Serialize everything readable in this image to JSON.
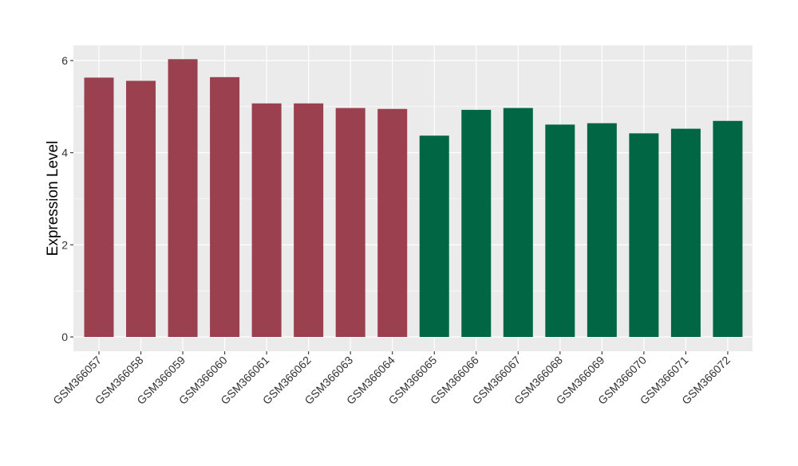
{
  "chart_data": {
    "type": "bar",
    "ylabel": "Expression Level",
    "xlabel": "",
    "title": "",
    "ylim": [
      0,
      6.3
    ],
    "y_ticks": [
      0,
      2,
      4,
      6
    ],
    "grid": true,
    "legend": "none",
    "colors": {
      "group_a": "#9b404f",
      "group_b": "#006644",
      "panel_background": "#ebebeb",
      "grid_line": "#ffffff"
    },
    "categories": [
      "GSM366057",
      "GSM366058",
      "GSM366059",
      "GSM366060",
      "GSM366061",
      "GSM366062",
      "GSM366063",
      "GSM366064",
      "GSM366065",
      "GSM366066",
      "GSM366067",
      "GSM366068",
      "GSM366069",
      "GSM366070",
      "GSM366071",
      "GSM366072"
    ],
    "values": [
      5.63,
      5.56,
      6.03,
      5.64,
      5.07,
      5.07,
      4.97,
      4.95,
      4.37,
      4.93,
      4.97,
      4.61,
      4.64,
      4.42,
      4.52,
      4.69
    ],
    "groups": [
      "group_a",
      "group_a",
      "group_a",
      "group_a",
      "group_a",
      "group_a",
      "group_a",
      "group_a",
      "group_b",
      "group_b",
      "group_b",
      "group_b",
      "group_b",
      "group_b",
      "group_b",
      "group_b"
    ]
  }
}
